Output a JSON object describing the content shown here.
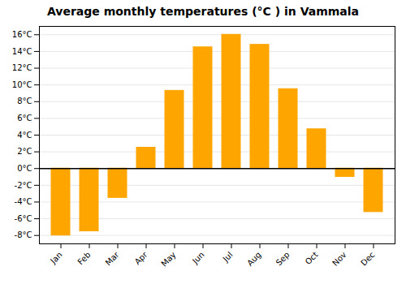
{
  "chart_data": {
    "type": "bar",
    "title": "Average monthly temperatures (°C ) in Vammala",
    "categories": [
      "Jan",
      "Feb",
      "Mar",
      "Apr",
      "May",
      "Jun",
      "Jul",
      "Aug",
      "Sep",
      "Oct",
      "Nov",
      "Dec"
    ],
    "values": [
      -8.0,
      -7.5,
      -3.5,
      2.5,
      9.3,
      14.5,
      16.0,
      14.8,
      9.5,
      4.7,
      -1.0,
      -5.2
    ],
    "color": "#FFA500",
    "ylim": [
      -9,
      17
    ],
    "yticks": [
      {
        "value": -8,
        "label": "-8°C"
      },
      {
        "value": -6,
        "label": "-6°C"
      },
      {
        "value": -4,
        "label": "-4°C"
      },
      {
        "value": -2,
        "label": "-2°C"
      },
      {
        "value": 0,
        "label": "0°C"
      },
      {
        "value": 2,
        "label": "2°C"
      },
      {
        "value": 4,
        "label": "4°C"
      },
      {
        "value": 6,
        "label": "6°C"
      },
      {
        "value": 8,
        "label": "8°C"
      },
      {
        "value": 10,
        "label": "10°C"
      },
      {
        "value": 12,
        "label": "12°C"
      },
      {
        "value": 14,
        "label": "14°C"
      },
      {
        "value": 16,
        "label": "16°C"
      }
    ],
    "grid": true
  }
}
